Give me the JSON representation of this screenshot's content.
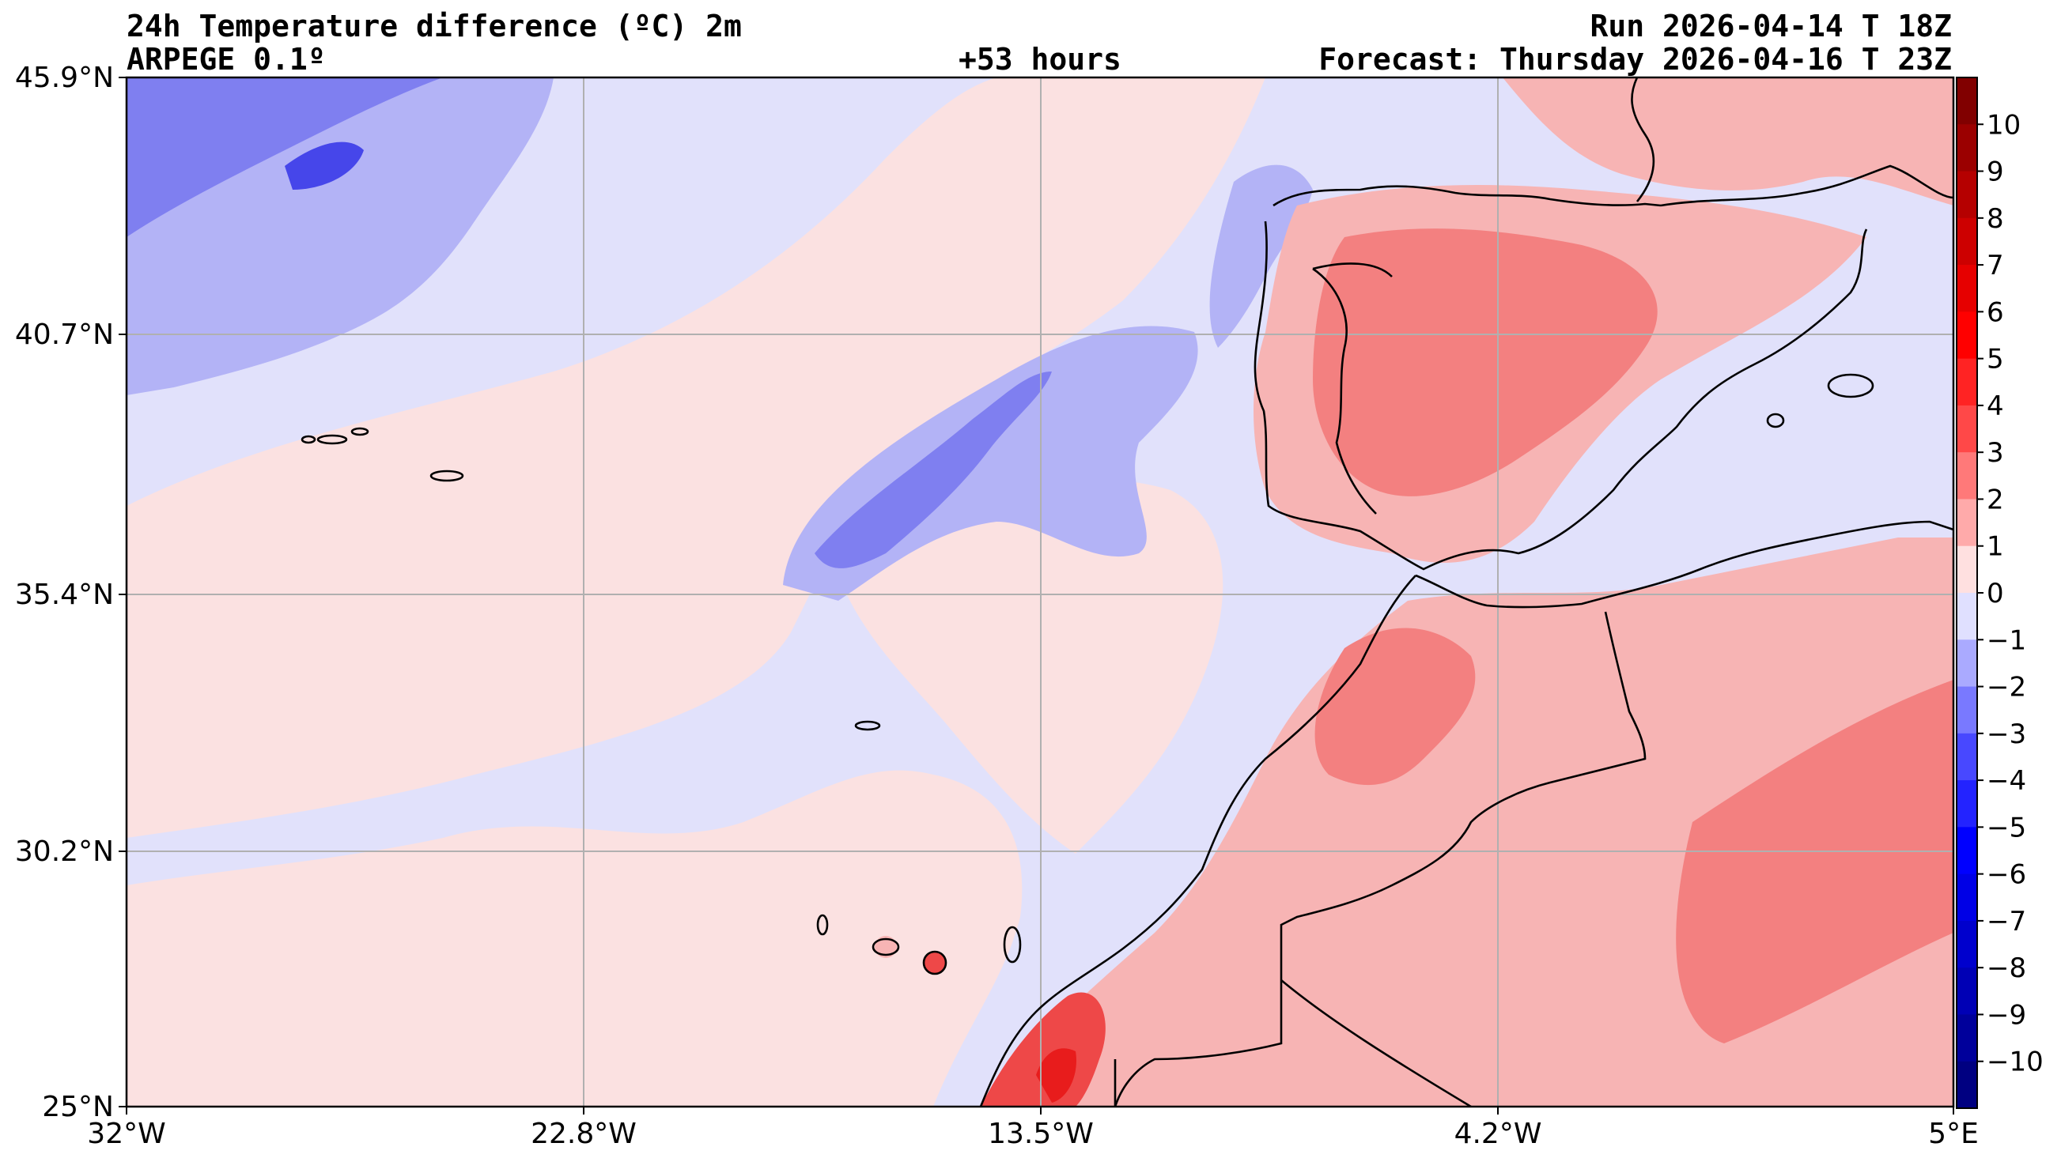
{
  "header": {
    "title": "24h Temperature difference (ºC) 2m",
    "model": "ARPEGE 0.1º",
    "lead_time": "+53 hours",
    "run": "Run 2026-04-14 T 18Z",
    "forecast": "Forecast: Thursday 2026-04-16 T 23Z"
  },
  "map": {
    "lat_labels": [
      "45.9°N",
      "40.7°N",
      "35.4°N",
      "30.2°N",
      "25°N"
    ],
    "lon_labels": [
      "32°W",
      "22.8°W",
      "13.5°W",
      "4.2°W",
      "5°E"
    ],
    "colors": {
      "ocean_slight_cool": "#e1e1fb",
      "slight_warm": "#fbe1e1",
      "cool_1": "#b3b3f6",
      "cool_2": "#7f7ff0",
      "cool_3": "#4646ea",
      "warm_1": "#f7b4b4",
      "warm_2": "#f38080",
      "warm_3": "#ee4848",
      "warm_4": "#e81c1c",
      "coastline": "#000000",
      "grid": "#b0b0b0"
    }
  },
  "colorbar": {
    "ticks": [
      "10",
      "9",
      "8",
      "7",
      "6",
      "5",
      "4",
      "3",
      "2",
      "1",
      "0",
      "−1",
      "−2",
      "−3",
      "−4",
      "−5",
      "−6",
      "−7",
      "−8",
      "−9",
      "−10"
    ],
    "colors": [
      "#810000",
      "#9b0000",
      "#b50000",
      "#cd0000",
      "#e60000",
      "#ff0000",
      "#ff2323",
      "#ff4848",
      "#ff7979",
      "#ffaaaa",
      "#ffe0e0",
      "#e0e0ff",
      "#aaaaff",
      "#7979ff",
      "#4848ff",
      "#2323ff",
      "#0000ff",
      "#0000e6",
      "#0000cd",
      "#0000b5",
      "#00009b",
      "#000081"
    ]
  }
}
